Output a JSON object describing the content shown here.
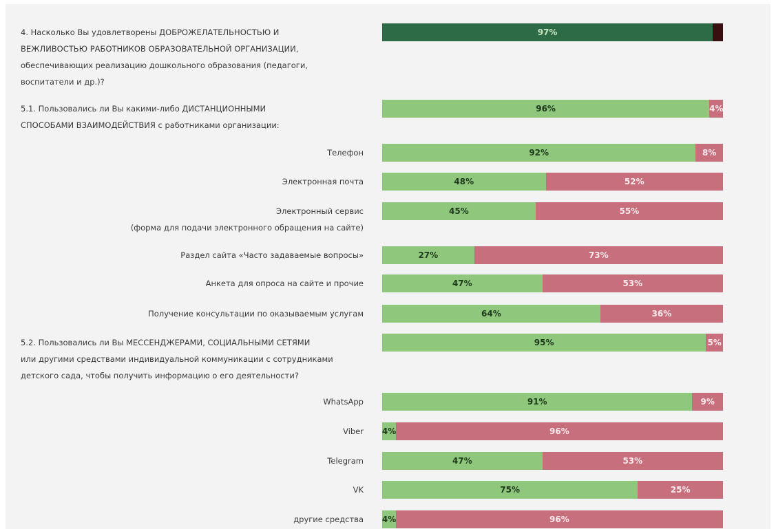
{
  "chart_data": {
    "type": "bar",
    "orientation": "horizontal",
    "stacked": true,
    "xlim": [
      0,
      100
    ],
    "categories": [
      "4. Насколько Вы удовлетворены ДОБРОЖЕЛАТЕЛЬНОСТЬЮ И\nВЕЖЛИВОСТЬЮ РАБОТНИКОВ ОБРАЗОВАТЕЛЬНОЙ ОРГАНИЗАЦИИ,\nобеспечивающих реализацию дошкольного образования (педагоги,\nвоспитатели и др.)?",
      "5.1. Пользовались ли Вы какими-либо ДИСТАНЦИОННЫМИ\nСПОСОБАМИ ВЗАИМОДЕЙСТВИЯ с работниками организации:",
      "Телефон",
      "Электронная почта",
      "Электронный сервис\n(форма для подачи электронного обращения на сайте)",
      "Раздел сайта «Часто задаваемые вопросы»",
      "Анкета для опроса на сайте и прочие",
      "Получение консультации по оказываемым услугам",
      "5.2. Пользовались ли Вы МЕССЕНДЖЕРАМИ, СОЦИАЛЬНЫМИ СЕТЯМИ\nили другими средствами индивидуальной коммуникации с сотрудниками\nдетского сада, чтобы получить информацию о его деятельности?",
      "WhatsApp",
      "Viber",
      "Telegram",
      "VK",
      "другие средства"
    ],
    "series": [
      {
        "color": "#8fc77d",
        "values": [
          97,
          96,
          92,
          48,
          45,
          27,
          47,
          64,
          95,
          91,
          4,
          47,
          75,
          4
        ],
        "value_labels": [
          "97%",
          "96%",
          "92%",
          "48%",
          "45%",
          "27%",
          "47%",
          "64%",
          "95%",
          "91%",
          "4%",
          "47%",
          "75%",
          "4%"
        ]
      },
      {
        "color": "#c86f7e",
        "values": [
          3,
          4,
          8,
          52,
          55,
          73,
          53,
          36,
          5,
          9,
          96,
          53,
          25,
          96
        ],
        "value_labels": [
          null,
          "4%",
          "8%",
          "52%",
          "55%",
          "73%",
          "53%",
          "36%",
          "5%",
          "9%",
          "96%",
          "53%",
          "25%",
          "96%"
        ]
      }
    ],
    "first_row_colors": [
      "#2d6a46",
      "#3a0f12"
    ]
  }
}
